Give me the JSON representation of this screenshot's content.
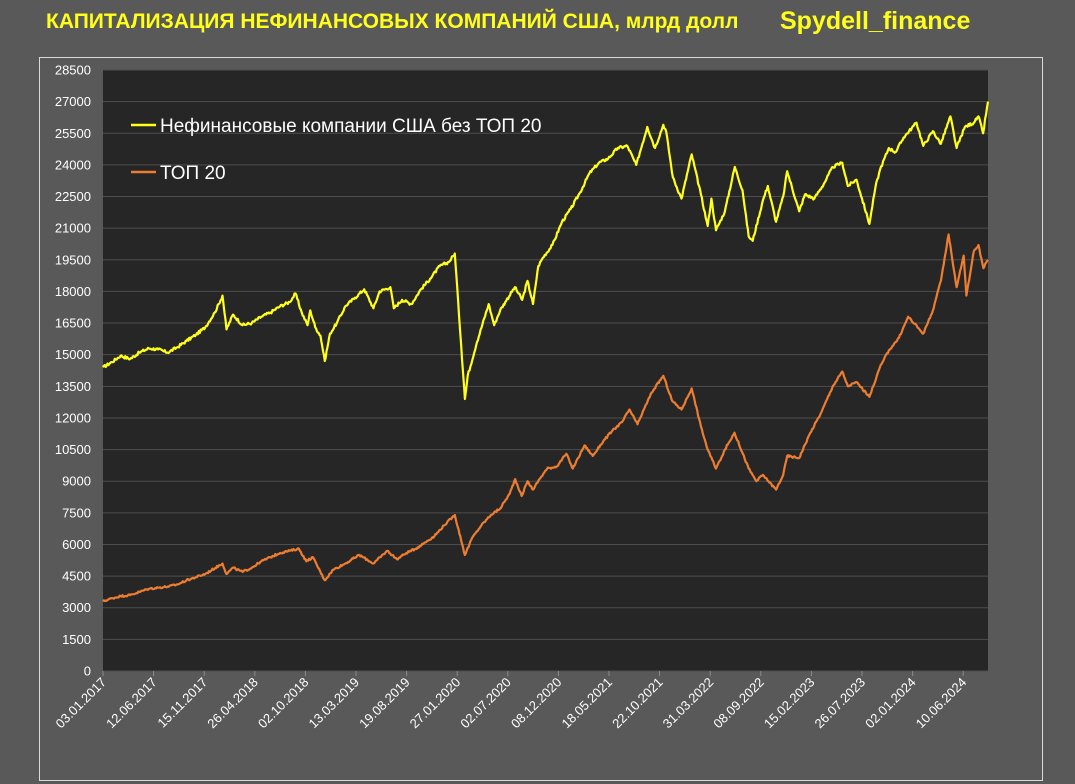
{
  "header": {
    "title": "КАПИТАЛИЗАЦИЯ НЕФИНАНСОВЫХ КОМПАНИЙ США, млрд долл",
    "brand": "Spydell_finance"
  },
  "colors": {
    "background": "#595959",
    "plot_background": "#262626",
    "gridline": "#4d4d4d",
    "series_non_top20": "#ffff1a",
    "series_top20": "#ed7d31"
  },
  "chart_data": {
    "type": "line",
    "title": "КАПИТАЛИЗАЦИЯ НЕФИНАНСОВЫХ КОМПАНИЙ США, млрд долл",
    "xlabel": "",
    "ylabel": "",
    "ylim": [
      0,
      28500
    ],
    "y_ticks": [
      "28500",
      "27000",
      "25500",
      "24000",
      "22500",
      "21000",
      "19500",
      "18000",
      "16500",
      "15000",
      "13500",
      "12000",
      "10500",
      "9000",
      "7500",
      "6000",
      "4500",
      "3000",
      "1500",
      "0"
    ],
    "x_ticks": [
      "03.01.2017",
      "12.06.2017",
      "15.11.2017",
      "26.04.2018",
      "02.10.2018",
      "13.03.2019",
      "19.08.2019",
      "27.01.2020",
      "02.07.2020",
      "08.12.2020",
      "18.05.2021",
      "22.10.2021",
      "31.03.2022",
      "08.09.2022",
      "15.02.2023",
      "26.07.2023",
      "02.01.2024",
      "10.06.2024"
    ],
    "xlim": [
      "2017-01-03",
      "2024-11-15"
    ],
    "grid": true,
    "legend_position": "top-left",
    "series": [
      {
        "name": "Нефинансовые компании США без ТОП 20",
        "points": [
          [
            "2017-01-03",
            14400
          ],
          [
            "2017-02-01",
            14650
          ],
          [
            "2017-03-01",
            14950
          ],
          [
            "2017-04-01",
            14800
          ],
          [
            "2017-05-01",
            15100
          ],
          [
            "2017-06-01",
            15300
          ],
          [
            "2017-07-01",
            15250
          ],
          [
            "2017-08-01",
            15100
          ],
          [
            "2017-09-01",
            15350
          ],
          [
            "2017-10-01",
            15650
          ],
          [
            "2017-11-01",
            15950
          ],
          [
            "2017-12-01",
            16300
          ],
          [
            "2018-01-01",
            17000
          ],
          [
            "2018-01-26",
            17800
          ],
          [
            "2018-02-08",
            16200
          ],
          [
            "2018-03-01",
            16900
          ],
          [
            "2018-04-01",
            16400
          ],
          [
            "2018-05-01",
            16500
          ],
          [
            "2018-06-01",
            16800
          ],
          [
            "2018-07-01",
            17000
          ],
          [
            "2018-08-01",
            17300
          ],
          [
            "2018-09-01",
            17500
          ],
          [
            "2018-09-20",
            17900
          ],
          [
            "2018-10-10",
            17000
          ],
          [
            "2018-10-29",
            16400
          ],
          [
            "2018-11-07",
            17100
          ],
          [
            "2018-11-23",
            16300
          ],
          [
            "2018-12-10",
            15900
          ],
          [
            "2018-12-24",
            14700
          ],
          [
            "2019-01-10",
            16000
          ],
          [
            "2019-02-01",
            16500
          ],
          [
            "2019-03-01",
            17300
          ],
          [
            "2019-04-01",
            17700
          ],
          [
            "2019-05-01",
            18100
          ],
          [
            "2019-05-31",
            17200
          ],
          [
            "2019-06-20",
            18000
          ],
          [
            "2019-07-25",
            18200
          ],
          [
            "2019-08-05",
            17200
          ],
          [
            "2019-09-01",
            17600
          ],
          [
            "2019-10-01",
            17400
          ],
          [
            "2019-11-01",
            18100
          ],
          [
            "2019-12-01",
            18600
          ],
          [
            "2020-01-01",
            19200
          ],
          [
            "2020-01-31",
            19400
          ],
          [
            "2020-02-19",
            19800
          ],
          [
            "2020-03-01",
            17500
          ],
          [
            "2020-03-23",
            12900
          ],
          [
            "2020-04-01",
            14000
          ],
          [
            "2020-05-01",
            15600
          ],
          [
            "2020-06-08",
            17400
          ],
          [
            "2020-06-26",
            16400
          ],
          [
            "2020-07-15",
            17100
          ],
          [
            "2020-08-01",
            17500
          ],
          [
            "2020-09-01",
            18200
          ],
          [
            "2020-09-25",
            17600
          ],
          [
            "2020-10-12",
            18500
          ],
          [
            "2020-10-30",
            17400
          ],
          [
            "2020-11-16",
            19200
          ],
          [
            "2020-12-01",
            19600
          ],
          [
            "2021-01-01",
            20200
          ],
          [
            "2021-02-01",
            21300
          ],
          [
            "2021-03-01",
            21900
          ],
          [
            "2021-04-01",
            22700
          ],
          [
            "2021-05-01",
            23600
          ],
          [
            "2021-06-01",
            24100
          ],
          [
            "2021-07-01",
            24300
          ],
          [
            "2021-08-01",
            24800
          ],
          [
            "2021-09-01",
            24900
          ],
          [
            "2021-09-30",
            24000
          ],
          [
            "2021-10-20",
            25000
          ],
          [
            "2021-11-05",
            25800
          ],
          [
            "2021-11-30",
            24800
          ],
          [
            "2021-12-27",
            25900
          ],
          [
            "2022-01-05",
            25600
          ],
          [
            "2022-01-27",
            23400
          ],
          [
            "2022-02-24",
            22400
          ],
          [
            "2022-03-29",
            24500
          ],
          [
            "2022-04-28",
            22600
          ],
          [
            "2022-05-20",
            21100
          ],
          [
            "2022-06-01",
            22400
          ],
          [
            "2022-06-16",
            20900
          ],
          [
            "2022-07-15",
            21800
          ],
          [
            "2022-08-16",
            23900
          ],
          [
            "2022-09-10",
            22800
          ],
          [
            "2022-09-30",
            20600
          ],
          [
            "2022-10-13",
            20400
          ],
          [
            "2022-11-15",
            22300
          ],
          [
            "2022-12-01",
            23000
          ],
          [
            "2022-12-28",
            21300
          ],
          [
            "2023-01-20",
            22500
          ],
          [
            "2023-02-02",
            23700
          ],
          [
            "2023-03-13",
            21800
          ],
          [
            "2023-04-01",
            22600
          ],
          [
            "2023-05-01",
            22400
          ],
          [
            "2023-06-01",
            23100
          ],
          [
            "2023-06-30",
            23900
          ],
          [
            "2023-07-31",
            24100
          ],
          [
            "2023-08-18",
            23000
          ],
          [
            "2023-09-15",
            23300
          ],
          [
            "2023-10-27",
            21200
          ],
          [
            "2023-11-15",
            22900
          ],
          [
            "2023-12-01",
            23800
          ],
          [
            "2023-12-29",
            24800
          ],
          [
            "2024-01-20",
            24600
          ],
          [
            "2024-02-15",
            25300
          ],
          [
            "2024-03-28",
            26000
          ],
          [
            "2024-04-19",
            24900
          ],
          [
            "2024-05-20",
            25600
          ],
          [
            "2024-06-15",
            25000
          ],
          [
            "2024-07-16",
            26300
          ],
          [
            "2024-08-05",
            24800
          ],
          [
            "2024-09-01",
            25800
          ],
          [
            "2024-09-30",
            26000
          ],
          [
            "2024-10-15",
            26300
          ],
          [
            "2024-10-30",
            25500
          ],
          [
            "2024-11-15",
            27000
          ]
        ]
      },
      {
        "name": "ТОП 20",
        "points": [
          [
            "2017-01-03",
            3300
          ],
          [
            "2017-02-01",
            3450
          ],
          [
            "2017-03-01",
            3550
          ],
          [
            "2017-04-01",
            3600
          ],
          [
            "2017-05-01",
            3750
          ],
          [
            "2017-06-01",
            3900
          ],
          [
            "2017-07-01",
            3950
          ],
          [
            "2017-08-01",
            4000
          ],
          [
            "2017-09-01",
            4100
          ],
          [
            "2017-10-01",
            4300
          ],
          [
            "2017-11-01",
            4450
          ],
          [
            "2017-12-01",
            4600
          ],
          [
            "2018-01-26",
            5100
          ],
          [
            "2018-02-08",
            4600
          ],
          [
            "2018-03-01",
            4900
          ],
          [
            "2018-04-01",
            4700
          ],
          [
            "2018-05-01",
            4900
          ],
          [
            "2018-06-01",
            5200
          ],
          [
            "2018-07-01",
            5400
          ],
          [
            "2018-08-01",
            5600
          ],
          [
            "2018-09-01",
            5700
          ],
          [
            "2018-10-01",
            5800
          ],
          [
            "2018-10-25",
            5200
          ],
          [
            "2018-11-15",
            5400
          ],
          [
            "2018-12-24",
            4300
          ],
          [
            "2019-01-20",
            4800
          ],
          [
            "2019-03-01",
            5100
          ],
          [
            "2019-04-15",
            5500
          ],
          [
            "2019-05-31",
            5100
          ],
          [
            "2019-07-15",
            5700
          ],
          [
            "2019-08-15",
            5300
          ],
          [
            "2019-09-15",
            5600
          ],
          [
            "2019-10-15",
            5800
          ],
          [
            "2019-11-15",
            6100
          ],
          [
            "2019-12-15",
            6400
          ],
          [
            "2020-01-15",
            6900
          ],
          [
            "2020-02-19",
            7400
          ],
          [
            "2020-03-23",
            5500
          ],
          [
            "2020-04-15",
            6300
          ],
          [
            "2020-05-15",
            6900
          ],
          [
            "2020-06-15",
            7400
          ],
          [
            "2020-07-15",
            7700
          ],
          [
            "2020-08-15",
            8400
          ],
          [
            "2020-09-02",
            9100
          ],
          [
            "2020-09-23",
            8300
          ],
          [
            "2020-10-12",
            9000
          ],
          [
            "2020-10-30",
            8600
          ],
          [
            "2020-11-20",
            9100
          ],
          [
            "2020-12-15",
            9600
          ],
          [
            "2021-01-15",
            9700
          ],
          [
            "2021-02-15",
            10300
          ],
          [
            "2021-03-08",
            9600
          ],
          [
            "2021-04-15",
            10700
          ],
          [
            "2021-05-12",
            10200
          ],
          [
            "2021-06-15",
            10900
          ],
          [
            "2021-07-15",
            11400
          ],
          [
            "2021-08-15",
            11800
          ],
          [
            "2021-09-08",
            12400
          ],
          [
            "2021-10-04",
            11700
          ],
          [
            "2021-10-25",
            12400
          ],
          [
            "2021-11-19",
            13200
          ],
          [
            "2021-12-27",
            14000
          ],
          [
            "2022-01-25",
            12800
          ],
          [
            "2022-02-24",
            12400
          ],
          [
            "2022-03-29",
            13400
          ],
          [
            "2022-04-28",
            11600
          ],
          [
            "2022-05-20",
            10500
          ],
          [
            "2022-06-16",
            9600
          ],
          [
            "2022-07-15",
            10500
          ],
          [
            "2022-08-15",
            11300
          ],
          [
            "2022-09-30",
            9600
          ],
          [
            "2022-10-25",
            9000
          ],
          [
            "2022-11-15",
            9300
          ],
          [
            "2022-12-28",
            8600
          ],
          [
            "2023-01-20",
            9300
          ],
          [
            "2023-02-02",
            10200
          ],
          [
            "2023-03-13",
            10100
          ],
          [
            "2023-04-15",
            11200
          ],
          [
            "2023-05-25",
            12300
          ],
          [
            "2023-06-30",
            13500
          ],
          [
            "2023-07-31",
            14200
          ],
          [
            "2023-08-18",
            13500
          ],
          [
            "2023-09-15",
            13700
          ],
          [
            "2023-10-27",
            13000
          ],
          [
            "2023-11-30",
            14400
          ],
          [
            "2023-12-29",
            15200
          ],
          [
            "2024-01-31",
            15800
          ],
          [
            "2024-03-01",
            16800
          ],
          [
            "2024-04-19",
            16000
          ],
          [
            "2024-05-20",
            17100
          ],
          [
            "2024-06-15",
            18500
          ],
          [
            "2024-07-10",
            20700
          ],
          [
            "2024-08-05",
            18200
          ],
          [
            "2024-08-28",
            19700
          ],
          [
            "2024-09-06",
            17800
          ],
          [
            "2024-09-30",
            19900
          ],
          [
            "2024-10-15",
            20200
          ],
          [
            "2024-10-31",
            19100
          ],
          [
            "2024-11-15",
            19500
          ]
        ]
      }
    ]
  }
}
